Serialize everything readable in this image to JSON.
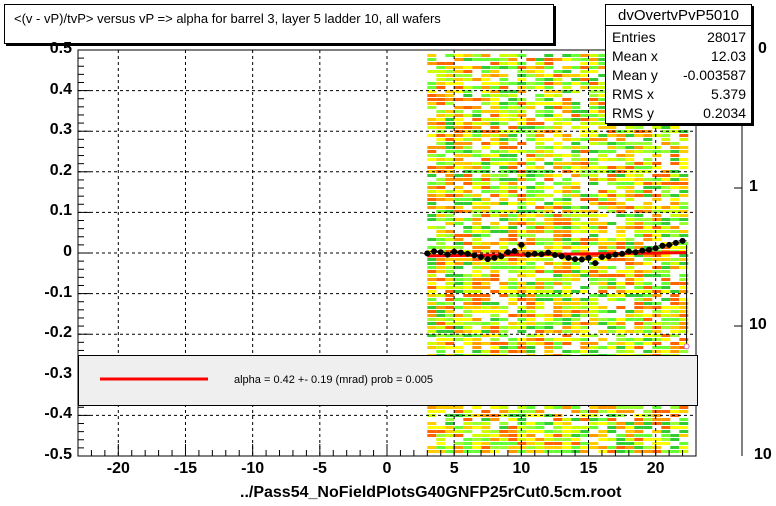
{
  "chart_data": {
    "type": "scatter",
    "title": "<(v - vP)/tvP> versus   vP => alpha for barrel 3, layer 5 ladder 10, all wafers",
    "xlabel": "../Pass54_NoFieldPlotsG40GNFP25rCut0.5cm.root",
    "ylabel": "",
    "xlim": [
      -23,
      23
    ],
    "ylim": [
      -0.5,
      0.5
    ],
    "x_ticks": [
      "-20",
      "-15",
      "-10",
      "-5",
      "0",
      "5",
      "10",
      "15",
      "20"
    ],
    "y_ticks": [
      "0.5",
      "0.4",
      "0.3",
      "0.2",
      "0.1",
      "0",
      "-0.1",
      "-0.2",
      "-0.3",
      "-0.4",
      "-0.5"
    ],
    "z_ticks": [
      "1",
      "10"
    ],
    "grid": true,
    "heatmap_xrange": [
      3,
      22.3
    ],
    "profile_points": [
      {
        "x": 3.0,
        "y": -0.001
      },
      {
        "x": 3.5,
        "y": 0.004
      },
      {
        "x": 4.0,
        "y": 0.002
      },
      {
        "x": 4.5,
        "y": -0.004
      },
      {
        "x": 5.0,
        "y": 0.003
      },
      {
        "x": 5.5,
        "y": 0.001
      },
      {
        "x": 6.0,
        "y": -0.002
      },
      {
        "x": 6.5,
        "y": -0.006
      },
      {
        "x": 7.0,
        "y": -0.01
      },
      {
        "x": 7.5,
        "y": -0.015
      },
      {
        "x": 8.0,
        "y": -0.012
      },
      {
        "x": 8.5,
        "y": -0.008
      },
      {
        "x": 9.0,
        "y": 0.002
      },
      {
        "x": 9.5,
        "y": 0.005
      },
      {
        "x": 10.0,
        "y": 0.02
      },
      {
        "x": 10.5,
        "y": -0.004
      },
      {
        "x": 11.0,
        "y": -0.002
      },
      {
        "x": 11.5,
        "y": -0.003
      },
      {
        "x": 12.0,
        "y": 0.001
      },
      {
        "x": 12.5,
        "y": -0.005
      },
      {
        "x": 13.0,
        "y": -0.008
      },
      {
        "x": 13.5,
        "y": -0.012
      },
      {
        "x": 14.0,
        "y": -0.015
      },
      {
        "x": 14.5,
        "y": -0.016
      },
      {
        "x": 15.0,
        "y": -0.012
      },
      {
        "x": 15.5,
        "y": -0.025
      },
      {
        "x": 16.0,
        "y": -0.01
      },
      {
        "x": 16.5,
        "y": -0.008
      },
      {
        "x": 17.0,
        "y": -0.004
      },
      {
        "x": 17.5,
        "y": -0.002
      },
      {
        "x": 18.0,
        "y": 0.004
      },
      {
        "x": 18.5,
        "y": 0.002
      },
      {
        "x": 19.0,
        "y": 0.006
      },
      {
        "x": 19.5,
        "y": 0.008
      },
      {
        "x": 20.0,
        "y": 0.012
      },
      {
        "x": 20.5,
        "y": 0.018
      },
      {
        "x": 21.0,
        "y": 0.02
      },
      {
        "x": 21.5,
        "y": 0.025
      },
      {
        "x": 22.0,
        "y": 0.03
      }
    ],
    "fit_line": {
      "x": [
        3,
        22.3
      ],
      "y": [
        -0.007,
        0.001
      ],
      "color": "#ff0000"
    },
    "outlier_point": {
      "x": 22.3,
      "y": -0.23
    }
  },
  "stats": {
    "name": "dvOvertvPvP5010",
    "rows": [
      {
        "key": "Entries",
        "value": "28017"
      },
      {
        "key": "Mean x",
        "value": "12.03"
      },
      {
        "key": "Mean y",
        "value": "-0.003587"
      },
      {
        "key": "RMS x",
        "value": "5.379"
      },
      {
        "key": "RMS y",
        "value": "0.2034"
      }
    ]
  },
  "fit_legend": {
    "text": "alpha =    0.42 +-  0.19 (mrad) prob = 0.005",
    "color": "#ff0000"
  },
  "z_top_partial": "0"
}
